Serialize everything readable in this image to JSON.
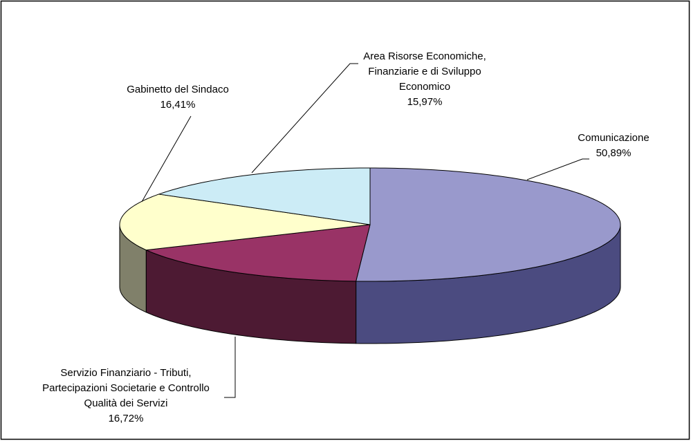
{
  "chart_data": {
    "type": "pie3d",
    "categories": [
      "Comunicazione",
      "Servizio Finanziario - Tributi, Partecipazioni Societarie e Controllo Qualità dei Servizi",
      "Gabinetto del Sindaco",
      "Area Risorse Economiche, Finanziarie e di Sviluppo Economico"
    ],
    "values": [
      50.89,
      16.72,
      16.41,
      15.97
    ],
    "value_labels": [
      "50,89%",
      "16,72%",
      "16,41%",
      "15,97%"
    ],
    "colors": [
      "#9999cc",
      "#993366",
      "#ffffcc",
      "#ccecf6"
    ],
    "side_colors": [
      "#4b4b80",
      "#4d1a33",
      "#80806a",
      "#667680"
    ]
  }
}
